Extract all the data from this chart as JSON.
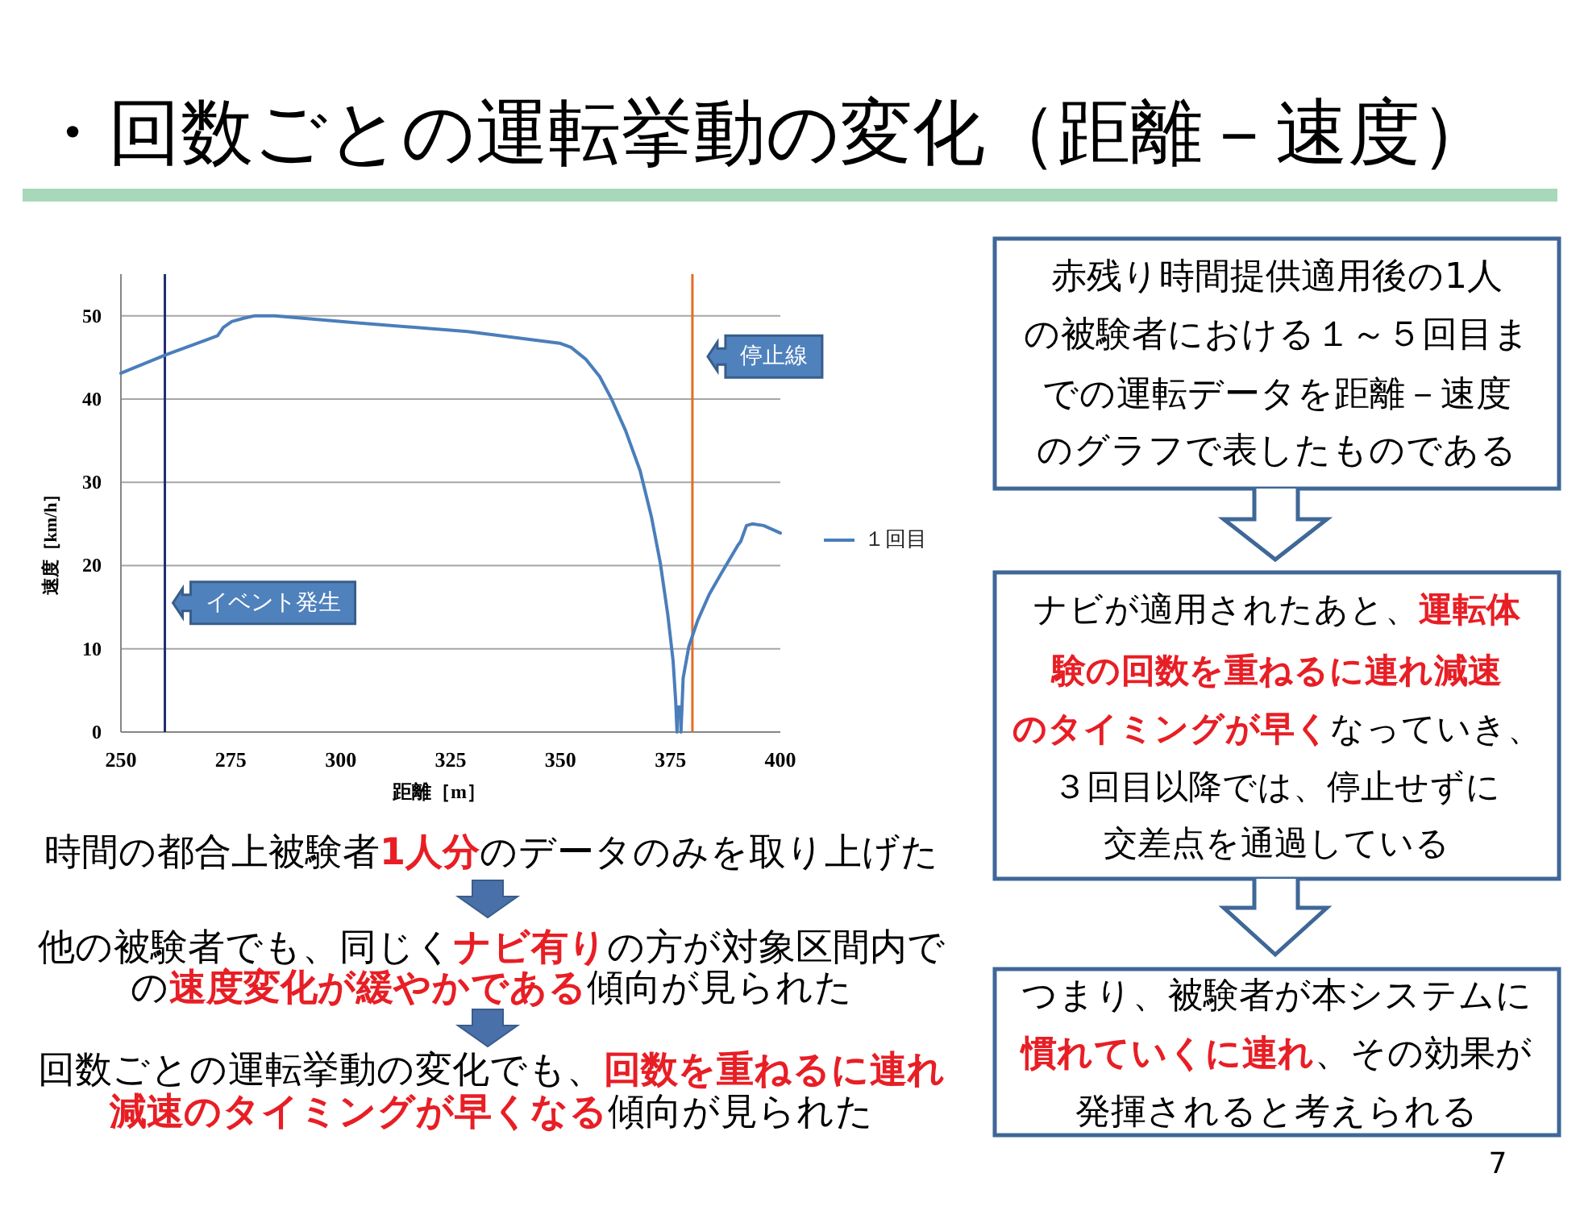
{
  "chart_data": {
    "type": "line",
    "title": "・回数ごとの運転挙動の変化（距離－速度）",
    "xlabel": "距離［m］",
    "ylabel": "速度［km/h］",
    "x": [
      250,
      260.2,
      272,
      273.3,
      275.2,
      277.9,
      280.5,
      285,
      302.7,
      328.9,
      349.8,
      352.4,
      355.7,
      358.9,
      361.6,
      364.8,
      368.1,
      370.7,
      372.7,
      374.4,
      375.6,
      376.2,
      376.5,
      376.7,
      377.3,
      377.4,
      377.9,
      379.2,
      381.2,
      383.8,
      386.4,
      390.3,
      391,
      392.3,
      393.6,
      396.2,
      400
    ],
    "series": [
      {
        "name": "１回目",
        "color": "#4a7ebb",
        "values": [
          43.1,
          45.3,
          47.6,
          48.6,
          49.3,
          49.7,
          50,
          50,
          49.2,
          48.1,
          46.7,
          46.2,
          44.8,
          42.7,
          40,
          36.2,
          31.4,
          25.8,
          20.3,
          14.1,
          8.6,
          3.7,
          0,
          3,
          3,
          0,
          6.5,
          10.3,
          13.4,
          16.5,
          18.9,
          22.4,
          22.9,
          24.8,
          25,
          24.8,
          23.9
        ]
      }
    ],
    "xlim": [
      250,
      400
    ],
    "xticks": [
      250,
      275,
      300,
      325,
      350,
      375,
      400
    ],
    "ylim": [
      0,
      55
    ],
    "yticks": [
      0,
      10,
      20,
      30,
      40,
      50
    ],
    "grid": "y",
    "legend": "right",
    "ref_lines": [
      {
        "axis": "x",
        "value": 260,
        "label": "イベント発生",
        "color": "#1f2f6b"
      },
      {
        "axis": "x",
        "value": 380,
        "label": "停止線",
        "color": "#e46c24"
      }
    ],
    "annotations": [
      "時間の都合上被験者",
      "1人分",
      "のデータのみを取り上げた",
      "他の被験者でも、同じく",
      "ナビ有り",
      "の方が対象区間内で",
      "の",
      "速度変化が緩やかである",
      "傾向が見られた",
      "回数ごとの運転挙動の変化でも、",
      "回数を重ねるに連れ",
      "減速のタイミングが早くなる",
      "傾向が見られた",
      "赤残り時間提供適用後の1人",
      "の被験者における１～５回目ま",
      "での運転データを距離－速度",
      "のグラフで表したものである",
      "ナビが適用されたあと、",
      "運転体",
      "験の回数を重ねるに連れ減速",
      "のタイミングが早く",
      "なっていき、",
      "３回目以降では、停止せずに",
      "交差点を通過している",
      "つまり、被験者が本システムに",
      "慣れていくに連れ",
      "、その効果が",
      "発揮されると考えられる",
      "7"
    ]
  }
}
